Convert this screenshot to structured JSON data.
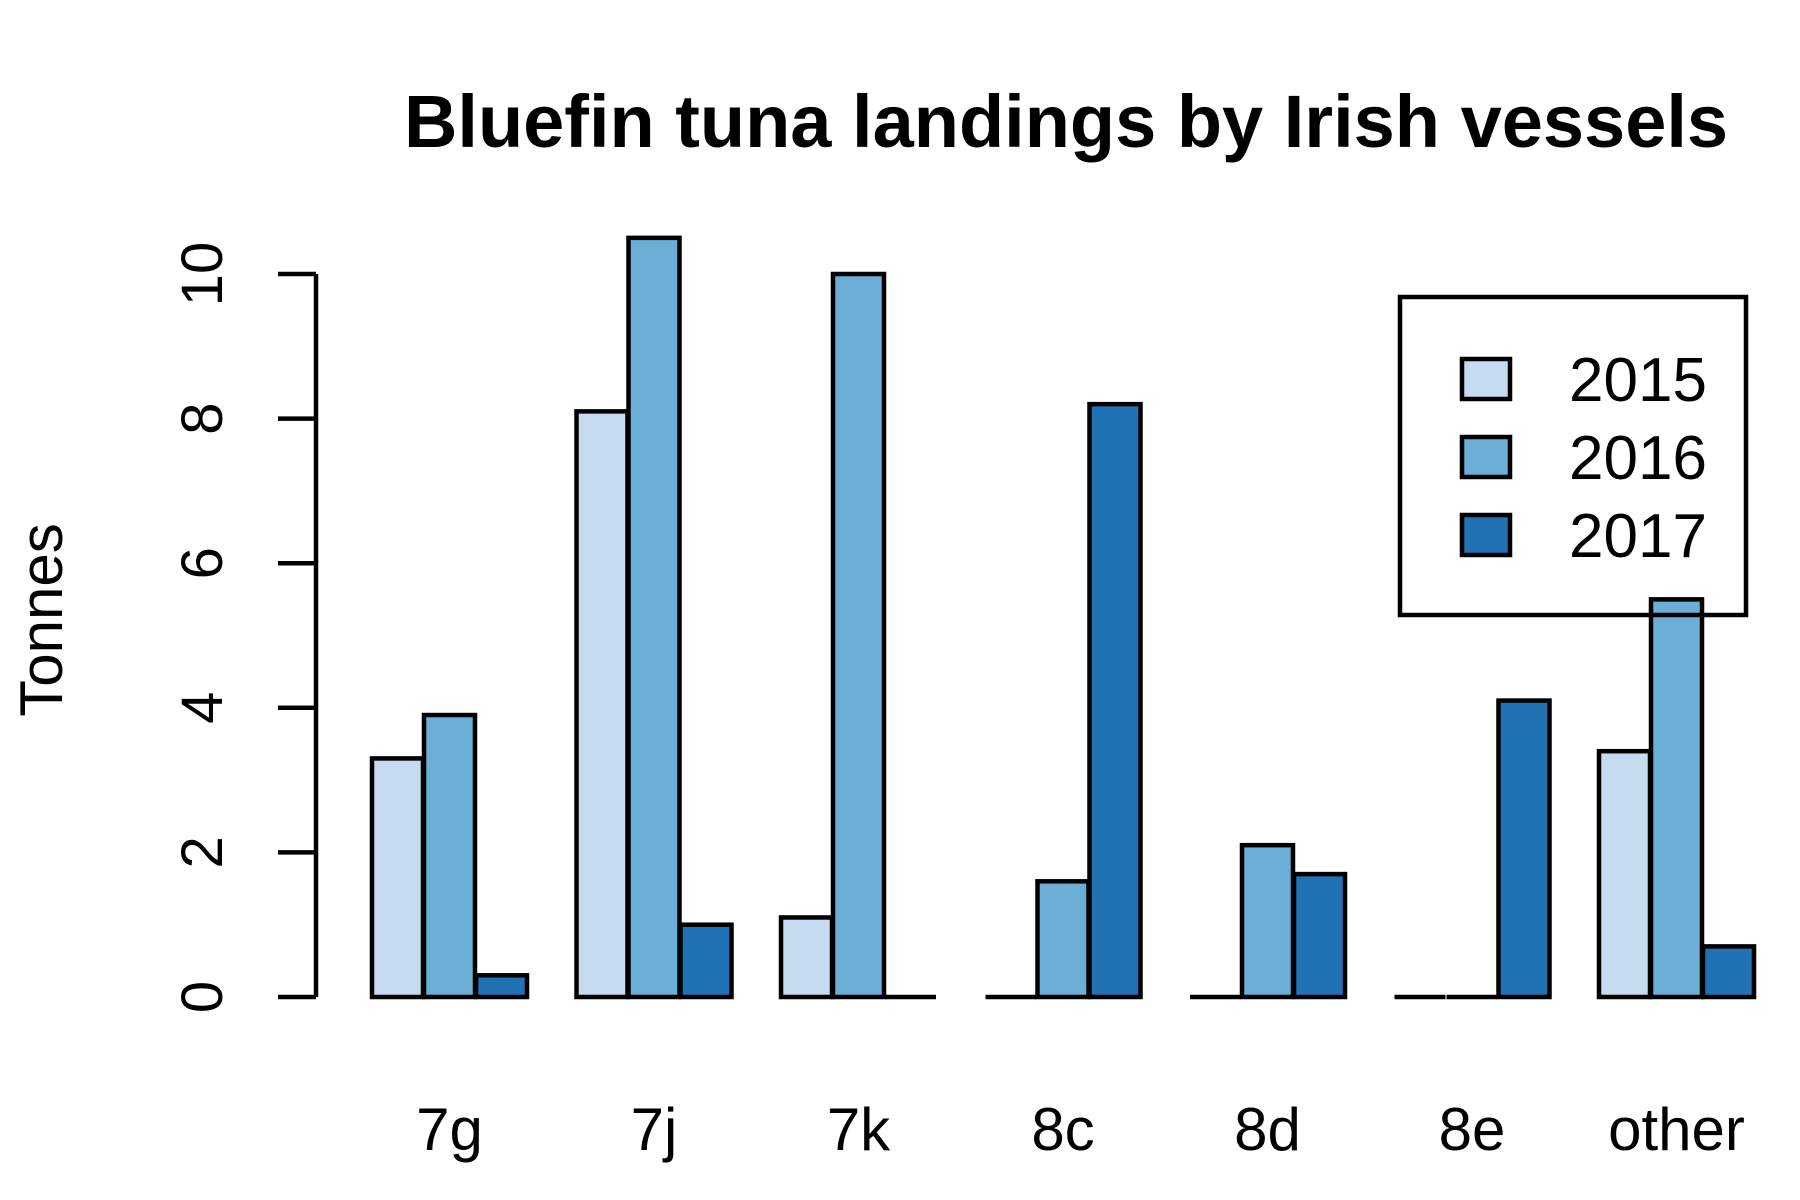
{
  "chart_data": {
    "type": "bar",
    "title": "Bluefin tuna landings by Irish vessels",
    "xlabel": "",
    "ylabel": "Tonnes",
    "categories": [
      "7g",
      "7j",
      "7k",
      "8c",
      "8d",
      "8e",
      "other"
    ],
    "series": [
      {
        "name": "2015",
        "color": "#c6dbef",
        "values": [
          3.3,
          8.1,
          1.1,
          0,
          0,
          0,
          3.4
        ]
      },
      {
        "name": "2016",
        "color": "#6baed6",
        "values": [
          3.9,
          10.5,
          10.0,
          1.6,
          2.1,
          0,
          5.5
        ]
      },
      {
        "name": "2017",
        "color": "#2171b5",
        "values": [
          0.3,
          1.0,
          0,
          8.2,
          1.7,
          4.1,
          0.7
        ]
      }
    ],
    "yticks": [
      0,
      2,
      4,
      6,
      8,
      10
    ],
    "ylim": [
      0,
      10.5
    ],
    "grid": false,
    "legend_position": "top-right"
  }
}
